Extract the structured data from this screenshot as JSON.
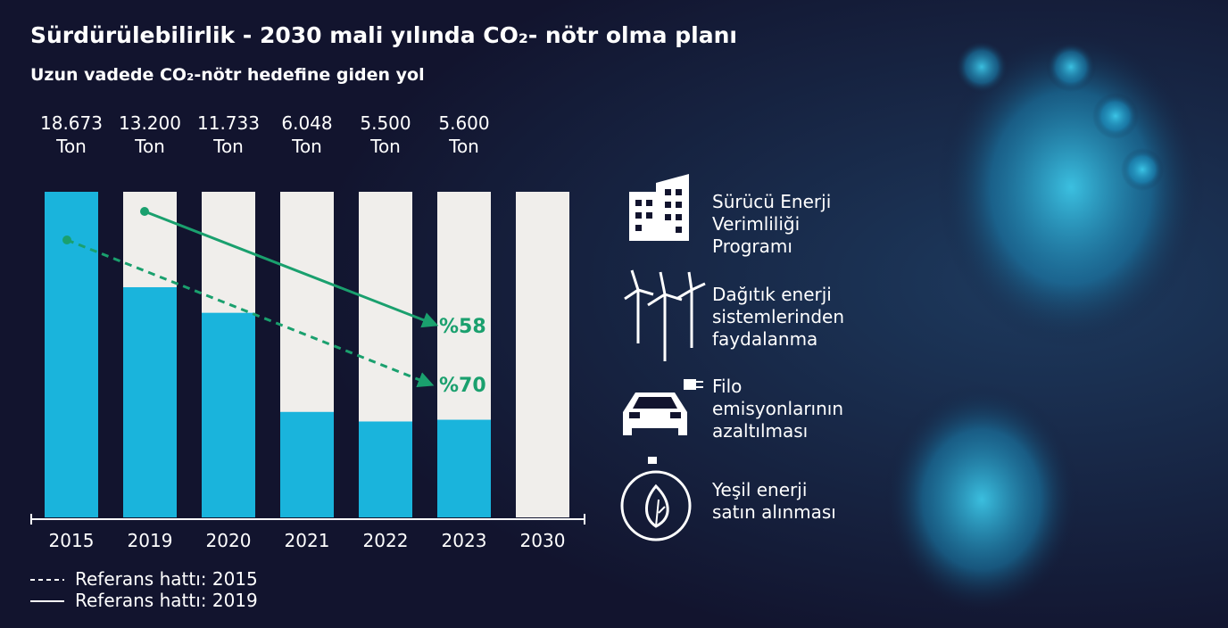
{
  "chart_data": {
    "type": "bar",
    "title": "Sürdürülebilirlik - 2030 mali yılında CO₂- nötr olma planı",
    "subtitle": "Uzun vadede CO₂-nötr hedefine giden yol",
    "categories": [
      "2015",
      "2019",
      "2020",
      "2021",
      "2022",
      "2023",
      "2030"
    ],
    "values": [
      18673,
      13200,
      11733,
      6048,
      5500,
      5600,
      0
    ],
    "value_labels": [
      "18.673",
      "13.200",
      "11.733",
      "6.048",
      "5.500",
      "5.600",
      null
    ],
    "unit_label": "Ton",
    "color": "#1ab4dc",
    "background_color": "#f0eeeb",
    "ylim": [
      0,
      18673
    ],
    "annotations": [
      {
        "text": "%58",
        "style": "solid"
      },
      {
        "text": "%70",
        "style": "dashed"
      }
    ],
    "legend": [
      "Referans hattı: 2015",
      "Referans hattı: 2019"
    ],
    "measures": [
      {
        "label": [
          "Sürücü Enerji",
          "Verimliliği",
          "Programı"
        ]
      },
      {
        "label": [
          "Dağıtık enerji",
          "sistemlerinden",
          "faydalanma"
        ]
      },
      {
        "label": [
          "Filo",
          "emisyonlarının",
          "azaltılması"
        ]
      },
      {
        "label": [
          "Yeşil enerji",
          "satın alınması"
        ]
      }
    ]
  }
}
